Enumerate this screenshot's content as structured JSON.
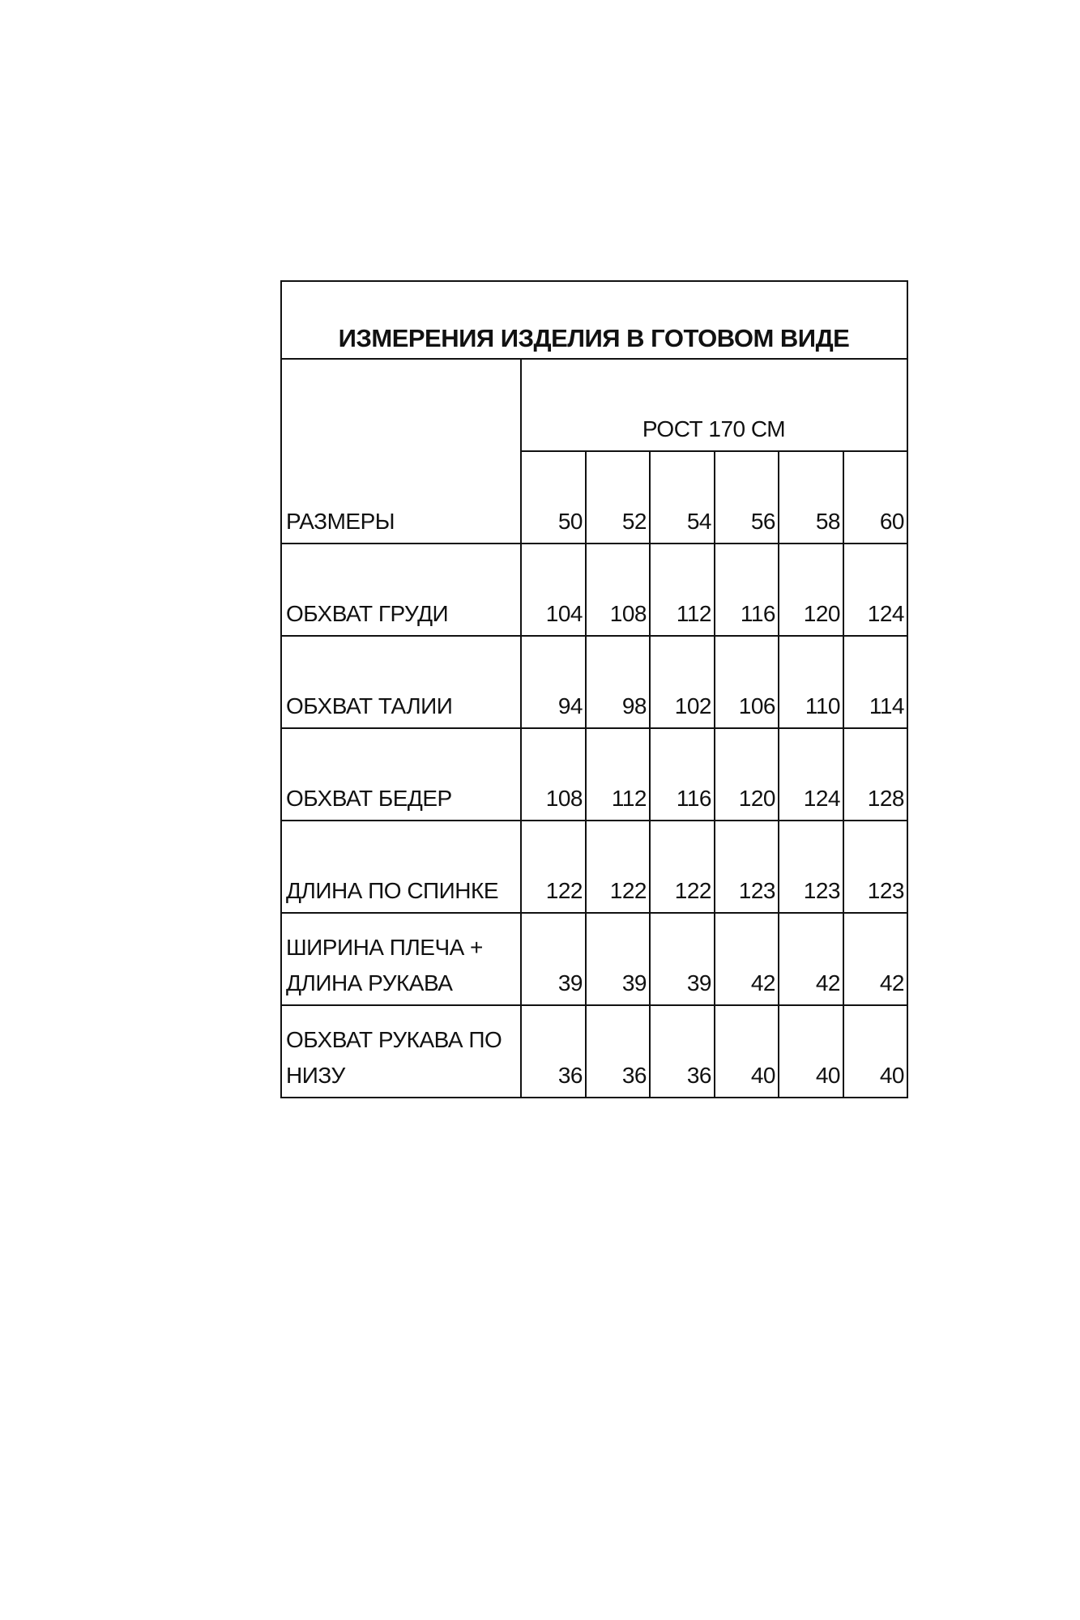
{
  "title": "ИЗМЕРЕНИЯ ИЗДЕЛИЯ В ГОТОВОМ ВИДЕ",
  "height_header": "РОСТ 170 СМ",
  "size_label": "РАЗМЕРЫ",
  "sizes": [
    "50",
    "52",
    "54",
    "56",
    "58",
    "60"
  ],
  "rows": [
    {
      "label": "ОБХВАТ ГРУДИ",
      "values": [
        "104",
        "108",
        "112",
        "116",
        "120",
        "124"
      ]
    },
    {
      "label": "ОБХВАТ ТАЛИИ",
      "values": [
        "94",
        "98",
        "102",
        "106",
        "110",
        "114"
      ]
    },
    {
      "label": "ОБХВАТ БЕДЕР",
      "values": [
        "108",
        "112",
        "116",
        "120",
        "124",
        "128"
      ]
    },
    {
      "label": "ДЛИНА ПО СПИНКЕ",
      "values": [
        "122",
        "122",
        "122",
        "123",
        "123",
        "123"
      ]
    },
    {
      "label": "ШИРИНА ПЛЕЧА + ДЛИНА РУКАВА",
      "values": [
        "39",
        "39",
        "39",
        "42",
        "42",
        "42"
      ]
    },
    {
      "label": "ОБХВАТ РУКАВА ПО НИЗУ",
      "values": [
        "36",
        "36",
        "36",
        "40",
        "40",
        "40"
      ]
    }
  ]
}
